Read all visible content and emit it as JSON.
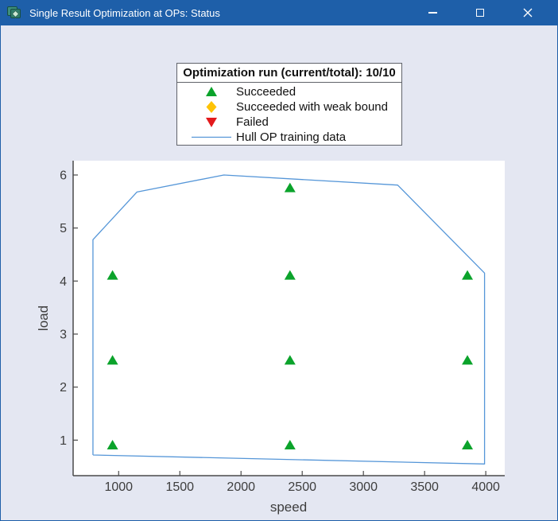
{
  "titlebar": {
    "title": "Single Result Optimization at OPs: Status",
    "buttons": [
      "minimize",
      "maximize",
      "close"
    ]
  },
  "colors": {
    "titlebar_bg": "#1e5fa9",
    "figure_bg": "#e4e7f2",
    "plot_bg": "#ffffff",
    "spine": "#4a4a4a",
    "tick_label": "#3d3d3d",
    "hull_line": "#5596d8",
    "succeeded_green": "#0ba32b",
    "weak_bound_yellow": "#fec306",
    "failed_red": "#e31a1c",
    "legend_border": "#60636a"
  },
  "legend": {
    "title": "Optimization run (current/total): 10/10",
    "entries": [
      {
        "name": "succeeded",
        "marker": "triangle-up",
        "color": "#0ba32b",
        "label": "Succeeded"
      },
      {
        "name": "succeeded-weak-bound",
        "marker": "diamond",
        "color": "#fec306",
        "label": "Succeeded with weak bound"
      },
      {
        "name": "failed",
        "marker": "triangle-down",
        "color": "#e31a1c",
        "label": "Failed"
      },
      {
        "name": "hull-training-data",
        "marker": "line",
        "color": "#5596d8",
        "label": "Hull OP training data"
      }
    ]
  },
  "chart_data": {
    "type": "scatter",
    "xlabel": "speed",
    "ylabel": "load",
    "xlim": [
      628,
      4155
    ],
    "ylim": [
      0.33,
      6.27
    ],
    "xticks": [
      1000,
      1500,
      2000,
      2500,
      3000,
      3500,
      4000
    ],
    "yticks": [
      1,
      2,
      3,
      4,
      5,
      6
    ],
    "grid": false,
    "series": [
      {
        "name": "Succeeded",
        "marker": "triangle-up",
        "color": "#0ba32b",
        "points": [
          [
            950,
            0.9
          ],
          [
            2400,
            0.9
          ],
          [
            3850,
            0.9
          ],
          [
            950,
            2.5
          ],
          [
            2400,
            2.5
          ],
          [
            3850,
            2.5
          ],
          [
            950,
            4.1
          ],
          [
            2400,
            4.1
          ],
          [
            3850,
            4.1
          ],
          [
            2400,
            5.75
          ]
        ]
      },
      {
        "name": "Succeeded with weak bound",
        "marker": "diamond",
        "color": "#fec306",
        "points": []
      },
      {
        "name": "Failed",
        "marker": "triangle-down",
        "color": "#e31a1c",
        "points": []
      }
    ],
    "hull_line": [
      [
        790,
        0.72
      ],
      [
        790,
        4.78
      ],
      [
        1150,
        5.68
      ],
      [
        1860,
        6.0
      ],
      [
        3280,
        5.81
      ],
      [
        3990,
        4.15
      ],
      [
        3990,
        0.55
      ],
      [
        790,
        0.72
      ]
    ]
  }
}
